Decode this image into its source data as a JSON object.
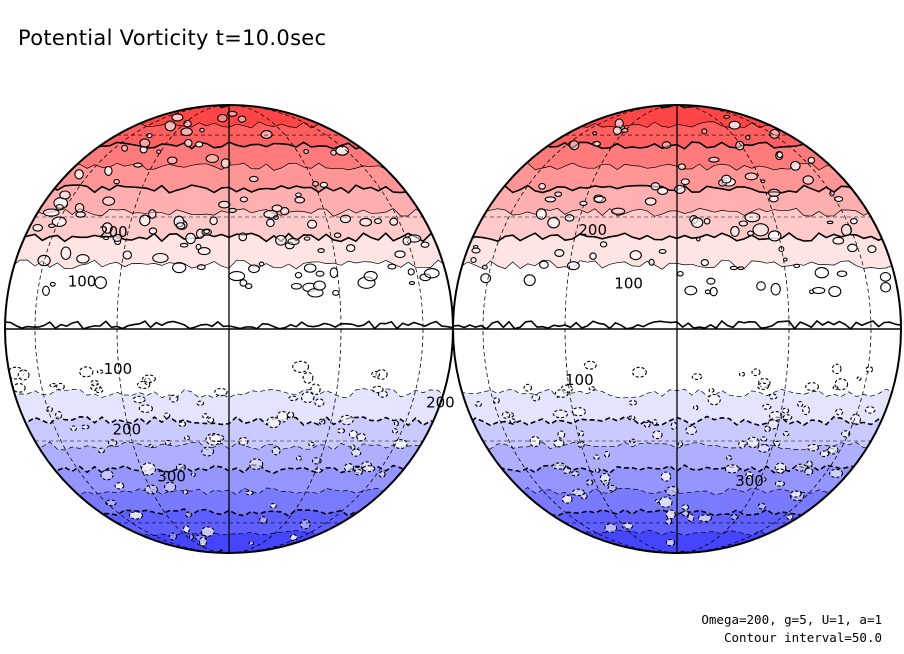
{
  "chart_data": {
    "type": "heatmap",
    "projection": "orthographic, two hemispheres",
    "title": "Potential Vorticity t=10.0sec",
    "variable": "Potential Vorticity",
    "time": "t=10.0sec",
    "parameters": "Omega=200, g=5, U=1, a=1",
    "contour_interval_text": "Contour interval=50.0",
    "contour_interval": 50,
    "color_scale": {
      "positive_color": "#ff2a2a",
      "negative_color": "#2a2aff",
      "zero_color": "#ffffff",
      "range": [
        -400,
        400
      ]
    },
    "panels": [
      {
        "name": "left-hemisphere",
        "contour_labels": [
          "100",
          "200",
          "100",
          "200",
          "300",
          "200"
        ]
      },
      {
        "name": "right-hemisphere",
        "contour_labels": [
          "200",
          "100",
          "100",
          "300"
        ]
      }
    ],
    "contour_levels": [
      -400,
      -350,
      -300,
      -250,
      -200,
      -150,
      -100,
      -50,
      0,
      50,
      100,
      150,
      200,
      250,
      300,
      350,
      400
    ]
  }
}
